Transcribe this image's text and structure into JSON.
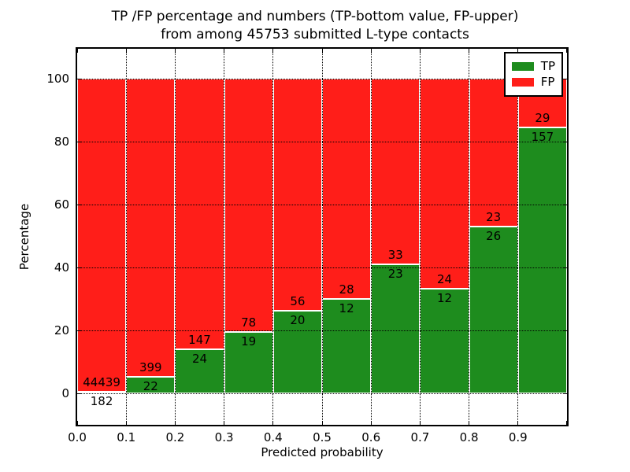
{
  "chart_data": {
    "type": "bar",
    "stacked": true,
    "title_line1": "TP /FP percentage and numbers (TP-bottom value, FP-upper)",
    "title_line2": "from among 45753 submitted L-type contacts",
    "xlabel": "Predicted probability",
    "ylabel": "Percentage",
    "categories": [
      "0.0-0.1",
      "0.1-0.2",
      "0.2-0.3",
      "0.3-0.4",
      "0.4-0.5",
      "0.5-0.6",
      "0.6-0.7",
      "0.7-0.8",
      "0.8-0.9",
      "0.9-1.0"
    ],
    "x_tick_labels": [
      "0.0",
      "0.1",
      "0.2",
      "0.3",
      "0.4",
      "0.5",
      "0.6",
      "0.7",
      "0.8",
      "0.9"
    ],
    "y_ticks": [
      0,
      20,
      40,
      60,
      80,
      100
    ],
    "xlim": [
      0.0,
      1.0
    ],
    "ylim": [
      -10,
      110
    ],
    "grid": "dotted",
    "total_contacts": 45753,
    "series": [
      {
        "name": "TP",
        "color": "#1e8c1e",
        "values": [
          182,
          22,
          24,
          19,
          20,
          12,
          23,
          12,
          26,
          157
        ]
      },
      {
        "name": "FP",
        "color": "#ff1e19",
        "values": [
          44439,
          399,
          147,
          78,
          56,
          28,
          33,
          24,
          23,
          29
        ]
      }
    ],
    "tp_percent": [
      0.41,
      5.23,
      14.04,
      19.59,
      26.32,
      30.0,
      41.07,
      33.33,
      53.06,
      84.41
    ],
    "legend": {
      "position": "upper right",
      "entries": [
        {
          "label": "TP",
          "color": "#1e8c1e"
        },
        {
          "label": "FP",
          "color": "#ff1e19"
        }
      ]
    }
  }
}
